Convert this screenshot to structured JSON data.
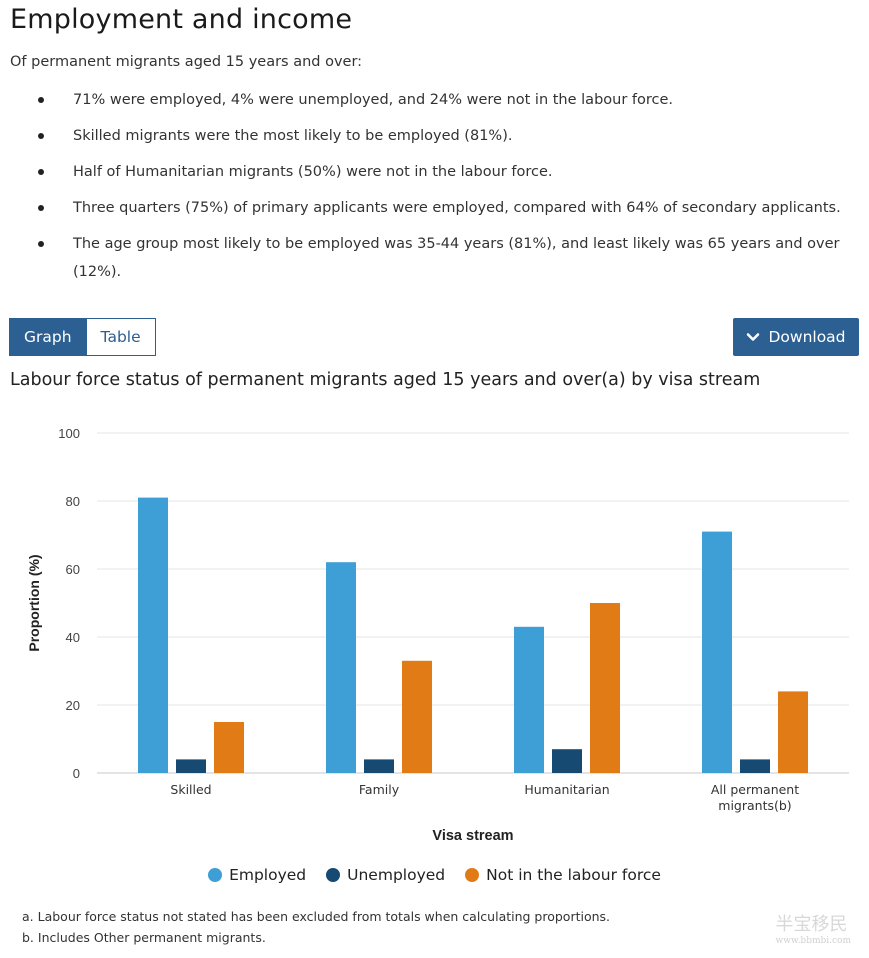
{
  "page": {
    "title": "Employment and income",
    "intro": "Of permanent migrants aged 15 years and over:",
    "bullets": [
      "71% were employed, 4% were unemployed, and 24% were not in the labour force.",
      "Skilled migrants were the most likely to be employed (81%).",
      "Half of Humanitarian migrants (50%) were not in the labour force.",
      "Three quarters (75%) of primary applicants were employed, compared with 64% of secondary applicants.",
      "The age group most likely to be employed was 35-44 years (81%), and least likely was 65 years and over (12%)."
    ]
  },
  "toolbar": {
    "graph_label": "Graph",
    "table_label": "Table",
    "active_tab": "Graph",
    "download_label": "Download"
  },
  "chart_data": {
    "type": "bar",
    "title": "Labour force status of permanent migrants aged 15 years and over(a) by visa stream",
    "xlabel": "Visa stream",
    "ylabel": "Proportion (%)",
    "ylim": [
      0,
      100
    ],
    "yticks": [
      0,
      20,
      40,
      60,
      80,
      100
    ],
    "grid": true,
    "legend_position": "bottom",
    "categories": [
      "Skilled",
      "Family",
      "Humanitarian",
      "All permanent migrants(b)"
    ],
    "series": [
      {
        "name": "Employed",
        "color": "#3d9fd6",
        "values": [
          81,
          62,
          43,
          71
        ]
      },
      {
        "name": "Unemployed",
        "color": "#164a72",
        "values": [
          4,
          4,
          7,
          4
        ]
      },
      {
        "name": "Not in the labour force",
        "color": "#e07b16",
        "values": [
          15,
          33,
          50,
          24
        ]
      }
    ]
  },
  "notes": [
    "a. Labour force status not stated has been excluded from totals when calculating proportions.",
    "b. Includes Other permanent migrants."
  ],
  "watermark": {
    "text": "半宝移民",
    "sub": "www.bbmbi.com"
  }
}
